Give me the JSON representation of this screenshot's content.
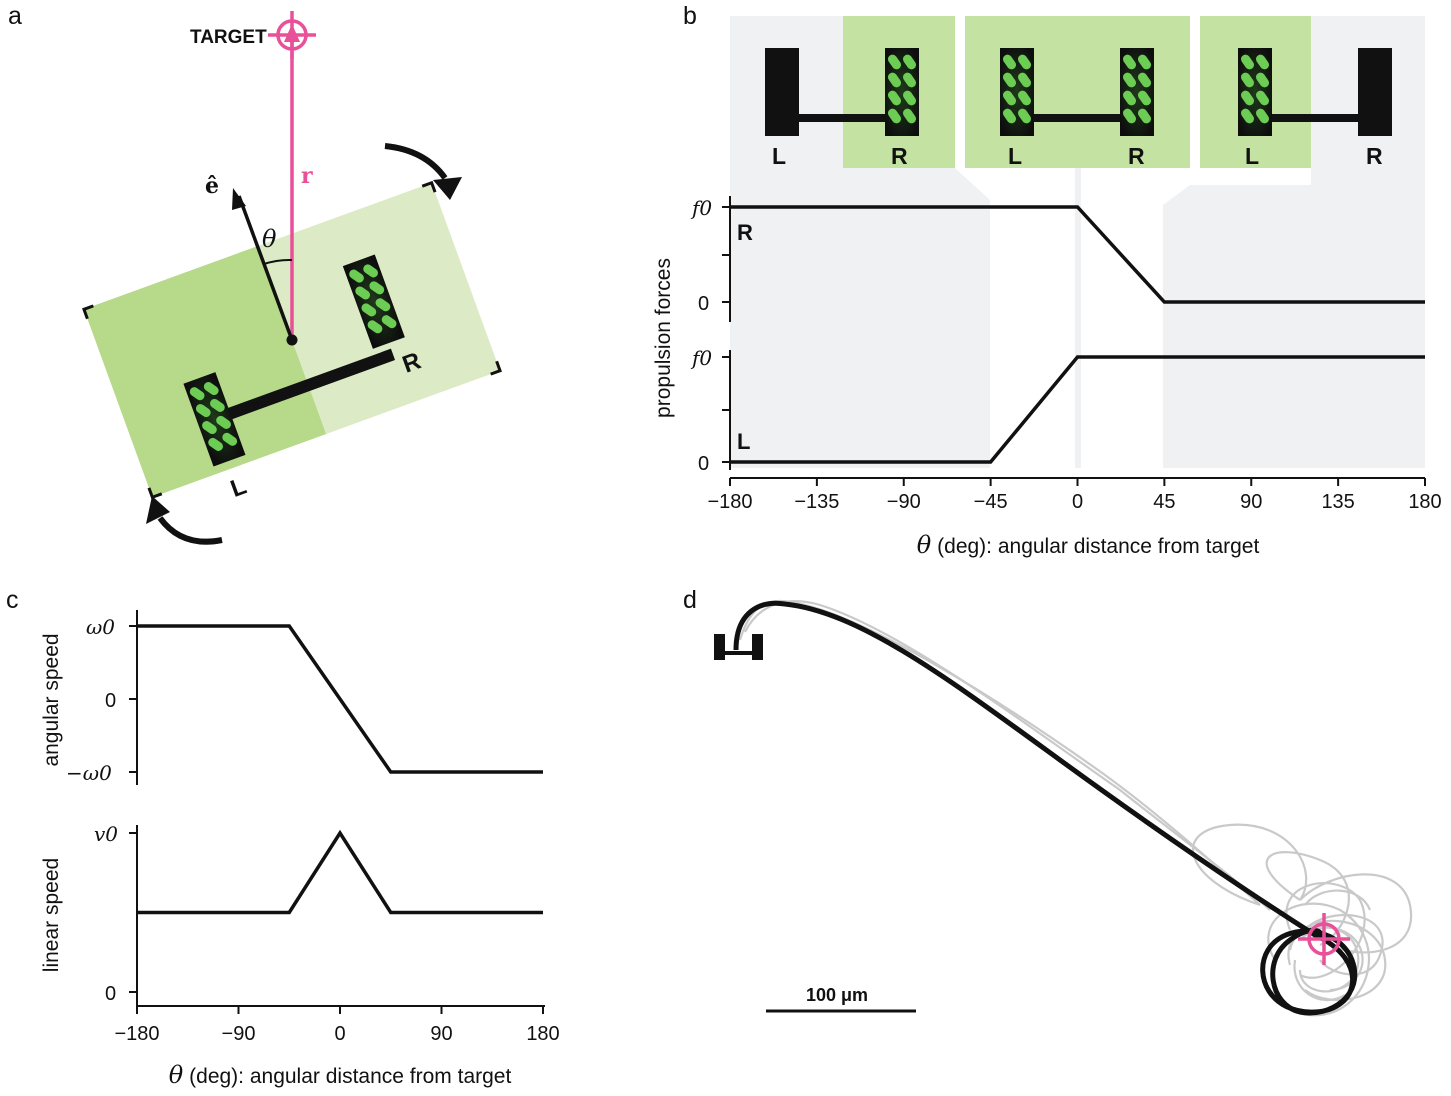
{
  "panels": {
    "a": "a",
    "b": "b",
    "c": "c",
    "d": "d"
  },
  "colors": {
    "accent": "#e8509a",
    "green_dark": "#b7d98a",
    "green_light": "#dcebc5",
    "green_strip": "#c4e3a3",
    "shade": "#f0f1f3",
    "ink": "#111111",
    "trail": "#c9c9c9"
  },
  "panel_a": {
    "target_label": "TARGET",
    "r_label": "r",
    "e_label": "ê",
    "theta_label": "θ",
    "left_label": "L",
    "right_label": "R",
    "icons": [
      "target-crosshair-icon",
      "rotate-clockwise-arrow-icon",
      "rotate-counterclockwise-arrow-icon"
    ]
  },
  "panel_b": {
    "robot_labels": [
      {
        "left": "L",
        "right": "R"
      },
      {
        "left": "L",
        "right": "R"
      },
      {
        "left": "L",
        "right": "R"
      }
    ],
    "ylabel": "propulsion forces",
    "xlabel": "(deg): angular distance from target",
    "xlabel_symbol": "θ",
    "top_trace_label": "R",
    "bottom_trace_label": "L",
    "ytick_top": "f0",
    "ytick_zero": "0"
  },
  "panel_c": {
    "ylabel_top": "angular speed",
    "ylabel_bottom": "linear speed",
    "xlabel": "(deg): angular distance from target",
    "xlabel_symbol": "θ",
    "ytick_omega_pos": "ω0",
    "ytick_omega_neg": "−ω0",
    "ytick_v0": "v0",
    "ytick_zero": "0"
  },
  "panel_d": {
    "scalebar_label": "100 μm"
  },
  "chart_data": [
    {
      "type": "line",
      "panel": "b",
      "xlabel": "θ (deg): angular distance from target",
      "ylabel": "propulsion forces",
      "xlim": [
        -180,
        180
      ],
      "xticks": [
        -180,
        -135,
        -90,
        -45,
        0,
        45,
        90,
        135,
        180
      ],
      "xtick_labels": [
        "−180",
        "−135",
        "−90",
        "−45",
        "0",
        "45",
        "90",
        "135",
        "180"
      ],
      "series": [
        {
          "name": "R",
          "x": [
            -180,
            0,
            45,
            180
          ],
          "y": [
            1,
            1,
            0,
            0
          ],
          "ytick_labels": [
            "f0",
            "0"
          ]
        },
        {
          "name": "L",
          "x": [
            -180,
            -45,
            0,
            180
          ],
          "y": [
            0,
            0,
            1,
            1
          ],
          "ytick_labels": [
            "f0",
            "0"
          ]
        }
      ]
    },
    {
      "type": "line",
      "panel": "c-top",
      "ylabel": "angular speed",
      "xlim": [
        -180,
        180
      ],
      "ylim": [
        -1,
        1
      ],
      "x": [
        -180,
        -45,
        45,
        180
      ],
      "y": [
        1,
        1,
        -1,
        -1
      ],
      "ytick_labels": [
        "ω0",
        "0",
        "−ω0"
      ]
    },
    {
      "type": "line",
      "panel": "c-bottom",
      "xlabel": "θ (deg): angular distance from target",
      "ylabel": "linear speed",
      "xlim": [
        -180,
        180
      ],
      "ylim": [
        0,
        1
      ],
      "x": [
        -180,
        -45,
        0,
        45,
        180
      ],
      "y": [
        0.5,
        0.5,
        1,
        0.5,
        0.5
      ],
      "xticks": [
        -180,
        -90,
        0,
        90,
        180
      ],
      "xtick_labels": [
        "−180",
        "−90",
        "0",
        "90",
        "180"
      ],
      "ytick_labels": [
        "v0",
        "0"
      ]
    }
  ]
}
